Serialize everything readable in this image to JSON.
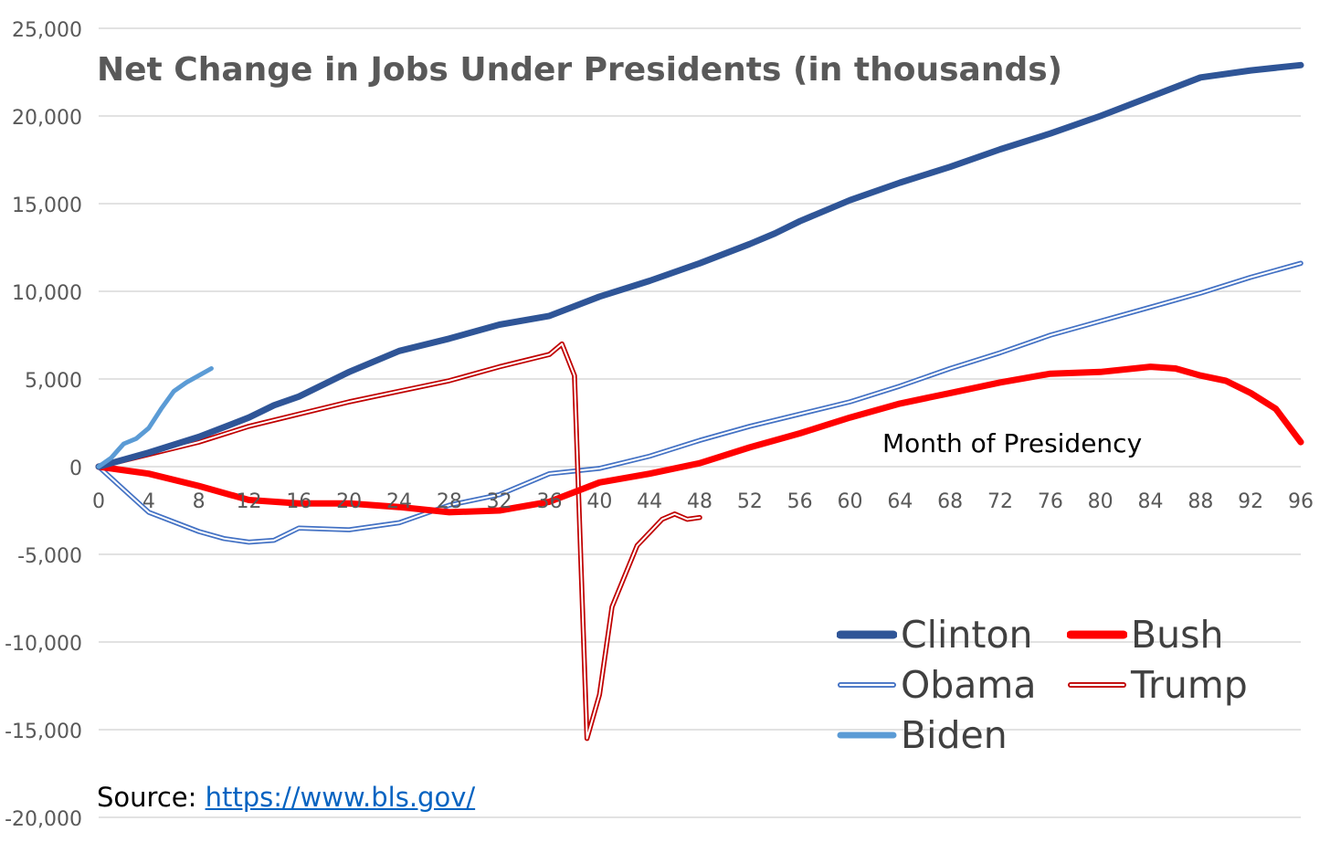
{
  "chart_data": {
    "type": "line",
    "title": "Net Change in Jobs Under Presidents (in thousands)",
    "xlabel": "Month of Presidency",
    "ylabel": "",
    "xlim": [
      0,
      96
    ],
    "ylim": [
      -20000,
      25000
    ],
    "x_ticks": [
      "0",
      "4",
      "8",
      "12",
      "16",
      "20",
      "24",
      "28",
      "32",
      "36",
      "40",
      "44",
      "48",
      "52",
      "56",
      "60",
      "64",
      "68",
      "72",
      "76",
      "80",
      "84",
      "88",
      "92",
      "96"
    ],
    "y_ticks": [
      "25,000",
      "20,000",
      "15,000",
      "10,000",
      "5,000",
      "0",
      "-5,000",
      "-10,000",
      "-15,000",
      "-20,000"
    ],
    "grid": "horizontal",
    "legend_position": "bottom-right",
    "series": [
      {
        "name": "Clinton",
        "style": "thick",
        "color": "#2f5597",
        "points": [
          [
            0,
            0
          ],
          [
            4,
            800
          ],
          [
            8,
            1700
          ],
          [
            12,
            2800
          ],
          [
            14,
            3500
          ],
          [
            16,
            4000
          ],
          [
            20,
            5400
          ],
          [
            24,
            6600
          ],
          [
            28,
            7300
          ],
          [
            32,
            8100
          ],
          [
            36,
            8600
          ],
          [
            40,
            9700
          ],
          [
            44,
            10600
          ],
          [
            48,
            11600
          ],
          [
            52,
            12700
          ],
          [
            54,
            13300
          ],
          [
            56,
            14000
          ],
          [
            60,
            15200
          ],
          [
            64,
            16200
          ],
          [
            68,
            17100
          ],
          [
            72,
            18100
          ],
          [
            76,
            19000
          ],
          [
            80,
            20000
          ],
          [
            84,
            21100
          ],
          [
            88,
            22200
          ],
          [
            92,
            22600
          ],
          [
            96,
            22900
          ]
        ]
      },
      {
        "name": "Bush",
        "style": "thick",
        "color": "#ff0000",
        "points": [
          [
            0,
            0
          ],
          [
            4,
            -400
          ],
          [
            8,
            -1100
          ],
          [
            12,
            -1900
          ],
          [
            16,
            -2100
          ],
          [
            20,
            -2100
          ],
          [
            24,
            -2300
          ],
          [
            28,
            -2600
          ],
          [
            32,
            -2500
          ],
          [
            36,
            -2000
          ],
          [
            40,
            -900
          ],
          [
            44,
            -400
          ],
          [
            48,
            200
          ],
          [
            52,
            1100
          ],
          [
            56,
            1900
          ],
          [
            60,
            2800
          ],
          [
            64,
            3600
          ],
          [
            68,
            4200
          ],
          [
            72,
            4800
          ],
          [
            76,
            5300
          ],
          [
            80,
            5400
          ],
          [
            84,
            5700
          ],
          [
            86,
            5600
          ],
          [
            88,
            5200
          ],
          [
            90,
            4900
          ],
          [
            92,
            4200
          ],
          [
            94,
            3300
          ],
          [
            96,
            1400
          ]
        ]
      },
      {
        "name": "Obama",
        "style": "double",
        "color": "#4472c4",
        "points": [
          [
            0,
            0
          ],
          [
            2,
            -1300
          ],
          [
            4,
            -2600
          ],
          [
            8,
            -3700
          ],
          [
            10,
            -4100
          ],
          [
            12,
            -4300
          ],
          [
            14,
            -4200
          ],
          [
            16,
            -3500
          ],
          [
            20,
            -3600
          ],
          [
            24,
            -3200
          ],
          [
            28,
            -2200
          ],
          [
            32,
            -1600
          ],
          [
            36,
            -400
          ],
          [
            40,
            -100
          ],
          [
            44,
            600
          ],
          [
            48,
            1500
          ],
          [
            52,
            2300
          ],
          [
            56,
            3000
          ],
          [
            60,
            3700
          ],
          [
            64,
            4600
          ],
          [
            68,
            5600
          ],
          [
            72,
            6500
          ],
          [
            76,
            7500
          ],
          [
            80,
            8300
          ],
          [
            84,
            9100
          ],
          [
            88,
            9900
          ],
          [
            92,
            10800
          ],
          [
            96,
            11600
          ]
        ]
      },
      {
        "name": "Trump",
        "style": "double",
        "color": "#c00000",
        "points": [
          [
            0,
            0
          ],
          [
            4,
            700
          ],
          [
            8,
            1400
          ],
          [
            12,
            2300
          ],
          [
            16,
            3000
          ],
          [
            20,
            3700
          ],
          [
            24,
            4300
          ],
          [
            28,
            4900
          ],
          [
            32,
            5700
          ],
          [
            36,
            6400
          ],
          [
            37,
            7000
          ],
          [
            38,
            5200
          ],
          [
            39,
            -15500
          ],
          [
            40,
            -13000
          ],
          [
            41,
            -8000
          ],
          [
            43,
            -4500
          ],
          [
            45,
            -3000
          ],
          [
            46,
            -2700
          ],
          [
            47,
            -3000
          ],
          [
            48,
            -2900
          ]
        ]
      },
      {
        "name": "Biden",
        "style": "medium",
        "color": "#5b9bd5",
        "points": [
          [
            0,
            0
          ],
          [
            1,
            500
          ],
          [
            2,
            1300
          ],
          [
            3,
            1600
          ],
          [
            4,
            2200
          ],
          [
            5,
            3300
          ],
          [
            6,
            4300
          ],
          [
            7,
            4800
          ],
          [
            8,
            5200
          ],
          [
            9,
            5600
          ]
        ]
      }
    ],
    "annotations": [
      "Month of Presidency"
    ]
  },
  "source": {
    "label": "Source:",
    "link": "https://www.bls.gov/"
  },
  "legend": {
    "items": [
      "Clinton",
      "Bush",
      "Obama",
      "Trump",
      "Biden"
    ]
  }
}
